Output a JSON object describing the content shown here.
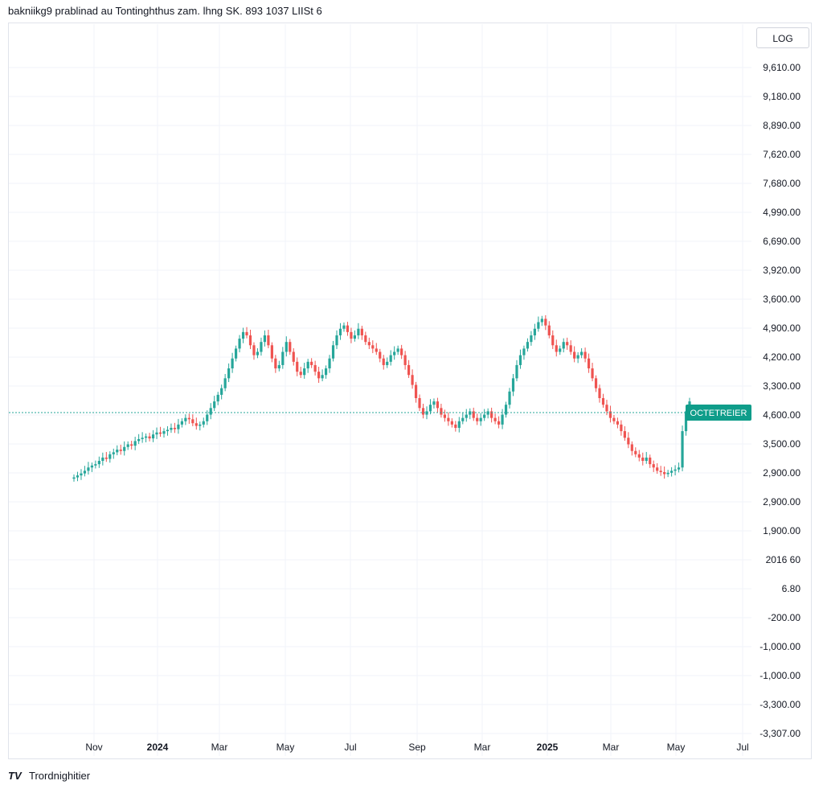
{
  "header": {
    "title": "bakniikg9 prablinad au Tontinghthus zam. lhng SK. 893 1037 LIISt 6"
  },
  "scale_badge": {
    "label": "LOG"
  },
  "footer": {
    "logo_mark": "TV",
    "brand": "Trordnighitier"
  },
  "colors": {
    "up": "#26a69a",
    "down": "#ef5350",
    "grid": "#f0f3fa",
    "dashed": "#26a69a",
    "badge": "#0f9d8a"
  },
  "price_label": {
    "text": "OCTETREIER"
  },
  "chart_data": {
    "type": "line",
    "subtype": "candlestick",
    "title": "",
    "xlabel": "",
    "ylabel": "",
    "y_axis_tick_labels": [
      "9,610.00",
      "9,180.00",
      "8,890.00",
      "7,620.00",
      "7,680.00",
      "4,990.00",
      "6,690.00",
      "3,920.00",
      "3,600.00",
      "4,900.00",
      "4,200.00",
      "3,300.00",
      "4,600.00",
      "3,500.00",
      "2,900.00",
      "2,900.00",
      "1,900.00",
      "2016 60",
      "6.80",
      "-200.00",
      "-1,000.00",
      "-1,000.00",
      "-3,300.00",
      "-3,307.00"
    ],
    "x_axis_tick_labels": [
      "Nov",
      "2024",
      "Mar",
      "May",
      "Jul",
      "Sep",
      "Mar",
      "2025",
      "Mar",
      "May",
      "Jul"
    ],
    "grid": true,
    "current_level_line": true,
    "series": [
      {
        "values": [
          800,
          830,
          860,
          900,
          950,
          980,
          1000,
          1050,
          1100,
          1080,
          1150,
          1180,
          1220,
          1200,
          1260,
          1300,
          1280,
          1350,
          1380,
          1400,
          1420,
          1390,
          1450,
          1480,
          1460,
          1500,
          1520,
          1550,
          1530,
          1600,
          1650,
          1700,
          1680,
          1620,
          1580,
          1600,
          1650,
          1750,
          1850,
          1950,
          2050,
          2150,
          2300,
          2450,
          2600,
          2750,
          2900,
          3000,
          2950,
          2800,
          2650,
          2700,
          2850,
          2950,
          2800,
          2600,
          2450,
          2500,
          2700,
          2850,
          2700,
          2550,
          2400,
          2350,
          2450,
          2550,
          2500,
          2400,
          2300,
          2350,
          2450,
          2600,
          2800,
          2950,
          3050,
          3100,
          3000,
          2900,
          2950,
          3050,
          2950,
          2850,
          2800,
          2750,
          2700,
          2600,
          2500,
          2550,
          2650,
          2700,
          2750,
          2650,
          2500,
          2350,
          2200,
          2000,
          1850,
          1750,
          1800,
          1900,
          1950,
          1850,
          1750,
          1700,
          1650,
          1600,
          1550,
          1650,
          1700,
          1750,
          1800,
          1700,
          1650,
          1700,
          1750,
          1800,
          1700,
          1650,
          1600,
          1750,
          1900,
          2100,
          2300,
          2500,
          2650,
          2750,
          2850,
          2950,
          3050,
          3150,
          3200,
          3100,
          2950,
          2800,
          2700,
          2750,
          2850,
          2800,
          2700,
          2600,
          2650,
          2700,
          2600,
          2450,
          2300,
          2150,
          2000,
          1900,
          1800,
          1700,
          1650,
          1600,
          1500,
          1400,
          1300,
          1200,
          1150,
          1100,
          1050,
          1100,
          1000,
          950,
          900,
          880,
          850,
          870,
          900,
          920,
          950,
          1500,
          1800,
          1950
        ]
      }
    ]
  }
}
